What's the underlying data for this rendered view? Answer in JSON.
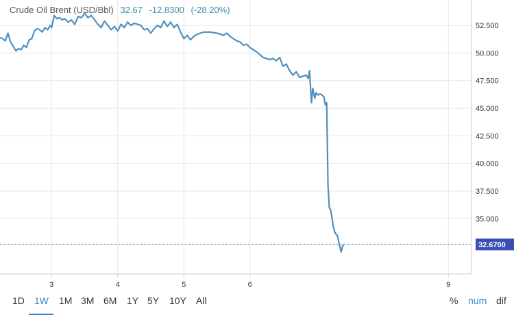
{
  "header": {
    "title": "Crude Oil Brent (USD/Bbl)",
    "last": "32.67",
    "change": "-12.8300",
    "change_pct": "(-28.20%)"
  },
  "colors": {
    "line": "#4f8fbf",
    "grid": "#e6e6e6",
    "axis": "#cccccc",
    "last_marker": "#3a4fb5",
    "active": "#3f84c5"
  },
  "range_buttons": [
    "1D",
    "1W",
    "1M",
    "3M",
    "6M",
    "1Y",
    "5Y",
    "10Y",
    "All"
  ],
  "active_range": "1W",
  "mode_buttons": [
    "%",
    "num",
    "dif"
  ],
  "active_mode": "num",
  "chart_data": {
    "type": "line",
    "title": "Crude Oil Brent (USD/Bbl)",
    "xlabel": "",
    "ylabel": "",
    "y_axis_position": "right",
    "ylim": [
      30.0,
      54.8
    ],
    "y_ticks": [
      "35.000",
      "37.500",
      "40.000",
      "42.500",
      "45.000",
      "47.500",
      "50.000",
      "52.500"
    ],
    "y_tick_values": [
      35,
      37.5,
      40,
      42.5,
      45,
      47.5,
      50,
      52.5
    ],
    "x_ticks": [
      "3",
      "4",
      "5",
      "6",
      "9"
    ],
    "x_tick_values": [
      3,
      4,
      5,
      6,
      9
    ],
    "xlim": [
      2.22,
      9.35
    ],
    "last_value_label": "32.6700",
    "last_value": 32.67,
    "grid": true,
    "series": [
      {
        "x": [
          2.22,
          2.26,
          2.3,
          2.34,
          2.38,
          2.42,
          2.46,
          2.5,
          2.54,
          2.58,
          2.62,
          2.66,
          2.7,
          2.74,
          2.78,
          2.82,
          2.86,
          2.9,
          2.94,
          2.98,
          3.0,
          3.04,
          3.08,
          3.12,
          3.16,
          3.2,
          3.25,
          3.3,
          3.35,
          3.4,
          3.45,
          3.5,
          3.55,
          3.6,
          3.65,
          3.7,
          3.75,
          3.8,
          3.85,
          3.9,
          3.95,
          4.0,
          4.05,
          4.1,
          4.15,
          4.2,
          4.25,
          4.3,
          4.35,
          4.4,
          4.45,
          4.5,
          4.55,
          4.6,
          4.65,
          4.7,
          4.75,
          4.8,
          4.85,
          4.9,
          4.95,
          5.0,
          5.05,
          5.1,
          5.15,
          5.2,
          5.3,
          5.4,
          5.5,
          5.6,
          5.65,
          5.7,
          5.75,
          5.8,
          5.85,
          5.9,
          5.95,
          6.0,
          6.05,
          6.1,
          6.2,
          6.3,
          6.35,
          6.4,
          6.45,
          6.5,
          6.55,
          6.6,
          6.65,
          6.7,
          6.75,
          6.8,
          6.85,
          6.88,
          6.9,
          6.93,
          6.95,
          6.98,
          7.0,
          7.03,
          7.06,
          7.09,
          7.12,
          7.14,
          7.16,
          7.18,
          7.2,
          7.22,
          7.24,
          7.26,
          7.28,
          7.3,
          7.32,
          7.34,
          7.36,
          7.38,
          7.4,
          7.42
        ],
        "y": [
          51.4,
          51.3,
          51.1,
          51.8,
          51.0,
          50.6,
          50.2,
          50.4,
          50.3,
          50.7,
          50.5,
          51.2,
          51.3,
          52.0,
          52.2,
          52.1,
          51.9,
          52.3,
          52.1,
          52.5,
          52.3,
          53.4,
          53.1,
          53.2,
          53.0,
          53.1,
          52.8,
          53.0,
          52.6,
          53.3,
          53.2,
          53.6,
          53.2,
          53.4,
          53.0,
          52.6,
          52.3,
          52.9,
          52.5,
          52.1,
          52.4,
          52.0,
          52.6,
          52.3,
          52.8,
          52.5,
          52.7,
          52.6,
          52.5,
          52.1,
          52.2,
          51.8,
          52.2,
          52.5,
          52.3,
          52.9,
          52.4,
          52.8,
          52.3,
          52.6,
          51.9,
          51.3,
          51.6,
          51.2,
          51.5,
          51.7,
          51.9,
          51.9,
          51.8,
          51.6,
          51.8,
          51.5,
          51.3,
          51.1,
          51.0,
          50.7,
          50.8,
          50.5,
          50.3,
          50.1,
          49.6,
          49.4,
          49.5,
          49.3,
          49.6,
          48.8,
          49.0,
          48.4,
          48.0,
          48.3,
          47.8,
          47.9,
          48.0,
          47.7,
          48.4,
          45.5,
          46.8,
          45.9,
          46.4,
          46.2,
          46.3,
          46.2,
          46.0,
          45.3,
          45.5,
          38.0,
          36.0,
          35.8,
          35.1,
          34.3,
          33.8,
          33.6,
          33.5,
          33.0,
          32.4,
          32.0,
          32.5,
          32.67
        ]
      }
    ]
  }
}
